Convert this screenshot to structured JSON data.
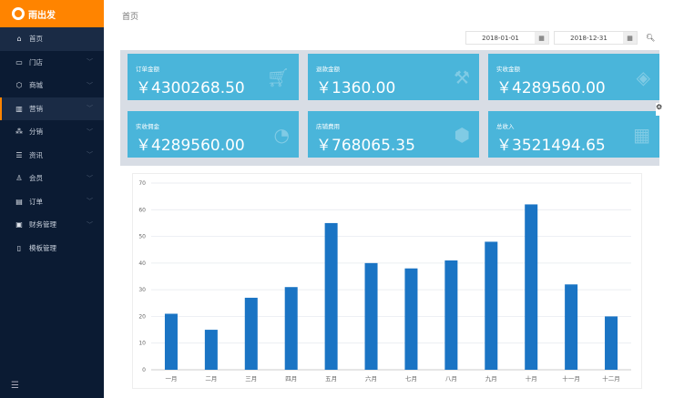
{
  "brand": {
    "name": "雨出发"
  },
  "sidebar": {
    "items": [
      {
        "label": "首页",
        "icon": "home-icon"
      },
      {
        "label": "门店",
        "icon": "store-icon"
      },
      {
        "label": "商城",
        "icon": "box-icon"
      },
      {
        "label": "营销",
        "icon": "chart-icon"
      },
      {
        "label": "分销",
        "icon": "sitemap-icon"
      },
      {
        "label": "资讯",
        "icon": "news-icon"
      },
      {
        "label": "会员",
        "icon": "user-icon"
      },
      {
        "label": "订单",
        "icon": "order-icon"
      },
      {
        "label": "财务管理",
        "icon": "finance-icon"
      },
      {
        "label": "模板管理",
        "icon": "template-icon"
      }
    ],
    "active": "营销"
  },
  "header": {
    "title": "首页"
  },
  "filters": {
    "start": "2018-01-01",
    "end": "2018-12-31"
  },
  "cards": [
    {
      "label": "订单金额",
      "value": "￥4300268.50",
      "icon": "cart-icon"
    },
    {
      "label": "退款金额",
      "value": "￥1360.00",
      "icon": "gavel-icon"
    },
    {
      "label": "实收金额",
      "value": "￥4289560.00",
      "icon": "tags-icon"
    },
    {
      "label": "实收佣金",
      "value": "￥4289560.00",
      "icon": "pie-icon"
    },
    {
      "label": "店铺费用",
      "value": "￥768065.35",
      "icon": "cube-icon"
    },
    {
      "label": "总收入",
      "value": "￥3521494.65",
      "icon": "calculator-icon"
    }
  ],
  "colors": {
    "accent": "#ff8400",
    "sidebar": "#0b1b33",
    "card": "#4ab5da",
    "bar": "#1a74c4"
  },
  "chart_data": {
    "type": "bar",
    "categories": [
      "一月",
      "二月",
      "三月",
      "四月",
      "五月",
      "六月",
      "七月",
      "八月",
      "九月",
      "十月",
      "十一月",
      "十二月"
    ],
    "values": [
      21,
      15,
      27,
      31,
      55,
      40,
      38,
      41,
      48,
      62,
      32,
      20
    ],
    "ylim": [
      0,
      70
    ],
    "yticks": [
      0,
      10,
      20,
      30,
      40,
      50,
      60,
      70
    ],
    "grid": true
  }
}
